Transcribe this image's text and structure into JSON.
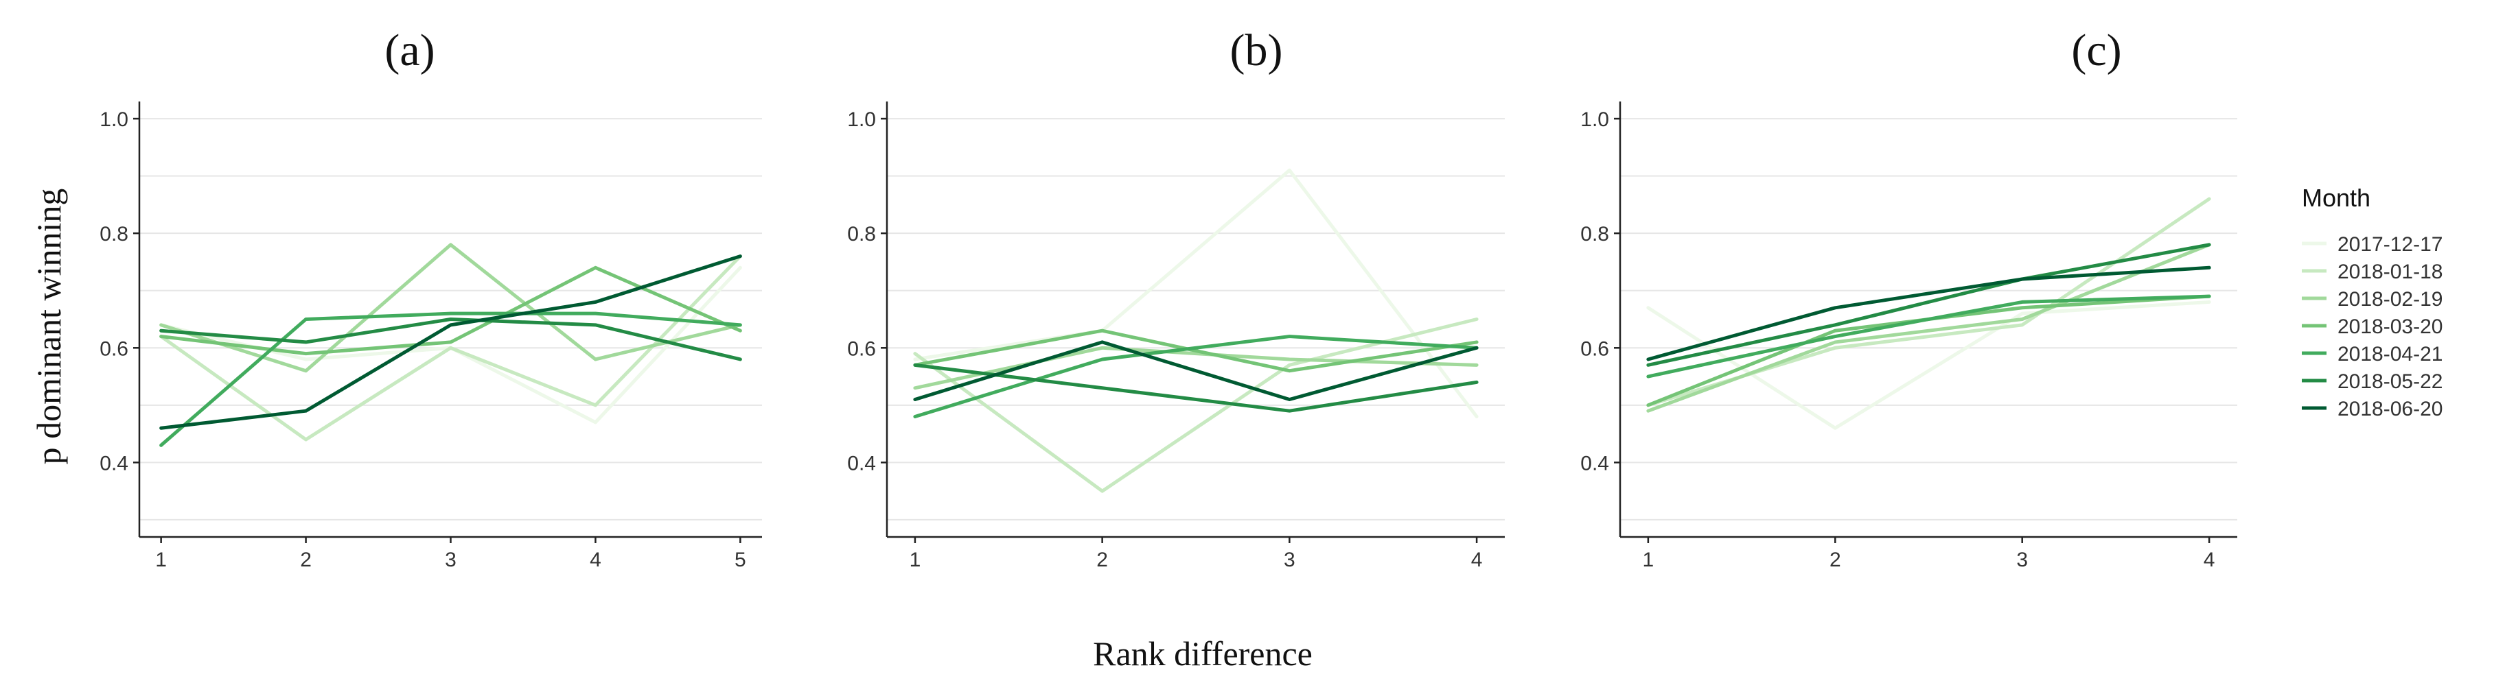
{
  "figure": {
    "ylabel": "p dominant winning",
    "xlabel": "Rank difference",
    "legend_title": "Month"
  },
  "series_colors": {
    "2017-12-17": "#edf8e9",
    "2018-01-18": "#c7e9c0",
    "2018-02-19": "#a1d99b",
    "2018-03-20": "#74c476",
    "2018-04-21": "#41ab5d",
    "2018-05-22": "#238b45",
    "2018-06-20": "#005a32"
  },
  "chart_data": [
    {
      "type": "line",
      "title": "(a)",
      "xlabel": "Rank difference",
      "ylabel": "p dominant winning",
      "x": [
        1,
        2,
        3,
        4,
        5
      ],
      "xticks": [
        "1",
        "2",
        "3",
        "4",
        "5"
      ],
      "yticks": [
        "0.4",
        "0.6",
        "0.8",
        "1.0"
      ],
      "xlim": [
        0.85,
        5.15
      ],
      "ylim": [
        0.27,
        1.03
      ],
      "series": [
        {
          "name": "2017-12-17",
          "values": [
            0.64,
            0.58,
            0.6,
            0.47,
            0.74
          ]
        },
        {
          "name": "2018-01-18",
          "values": [
            0.62,
            0.44,
            0.6,
            0.5,
            0.76
          ]
        },
        {
          "name": "2018-02-19",
          "values": [
            0.64,
            0.56,
            0.78,
            0.58,
            0.64
          ]
        },
        {
          "name": "2018-03-20",
          "values": [
            0.62,
            0.59,
            0.61,
            0.74,
            0.63
          ]
        },
        {
          "name": "2018-04-21",
          "values": [
            0.43,
            0.65,
            0.66,
            0.66,
            0.64
          ]
        },
        {
          "name": "2018-05-22",
          "values": [
            0.63,
            0.61,
            0.65,
            0.64,
            0.58
          ]
        },
        {
          "name": "2018-06-20",
          "values": [
            0.46,
            0.49,
            0.64,
            0.68,
            0.76
          ]
        }
      ]
    },
    {
      "type": "line",
      "title": "(b)",
      "xlabel": "Rank difference",
      "ylabel": "p dominant winning",
      "x": [
        1,
        2,
        3,
        4
      ],
      "xticks": [
        "1",
        "2",
        "3",
        "4"
      ],
      "yticks": [
        "0.4",
        "0.6",
        "0.8",
        "1.0"
      ],
      "xlim": [
        0.85,
        4.15
      ],
      "ylim": [
        0.27,
        1.03
      ],
      "series": [
        {
          "name": "2017-12-17",
          "values": [
            0.58,
            0.63,
            0.91,
            0.48
          ]
        },
        {
          "name": "2018-01-18",
          "values": [
            0.59,
            0.35,
            0.57,
            0.65
          ]
        },
        {
          "name": "2018-02-19",
          "values": [
            0.53,
            0.6,
            0.58,
            0.57
          ]
        },
        {
          "name": "2018-03-20",
          "values": [
            0.57,
            0.63,
            0.56,
            0.61
          ]
        },
        {
          "name": "2018-04-21",
          "values": [
            0.48,
            0.58,
            0.62,
            0.6
          ]
        },
        {
          "name": "2018-05-22",
          "values": [
            0.57,
            0.53,
            0.49,
            0.54
          ]
        },
        {
          "name": "2018-06-20",
          "values": [
            0.51,
            0.61,
            0.51,
            0.6
          ]
        }
      ]
    },
    {
      "type": "line",
      "title": "(c)",
      "xlabel": "Rank difference",
      "ylabel": "p dominant winning",
      "x": [
        1,
        2,
        3,
        4
      ],
      "xticks": [
        "1",
        "2",
        "3",
        "4"
      ],
      "yticks": [
        "0.4",
        "0.6",
        "0.8",
        "1.0"
      ],
      "xlim": [
        0.85,
        4.15
      ],
      "ylim": [
        0.27,
        1.03
      ],
      "series": [
        {
          "name": "2017-12-17",
          "values": [
            0.67,
            0.46,
            0.66,
            0.68
          ]
        },
        {
          "name": "2018-01-18",
          "values": [
            0.5,
            0.6,
            0.64,
            0.86
          ]
        },
        {
          "name": "2018-02-19",
          "values": [
            0.49,
            0.61,
            0.65,
            0.78
          ]
        },
        {
          "name": "2018-03-20",
          "values": [
            0.5,
            0.63,
            0.67,
            0.69
          ]
        },
        {
          "name": "2018-04-21",
          "values": [
            0.55,
            0.62,
            0.68,
            0.69
          ]
        },
        {
          "name": "2018-05-22",
          "values": [
            0.57,
            0.64,
            0.72,
            0.78
          ]
        },
        {
          "name": "2018-06-20",
          "values": [
            0.58,
            0.67,
            0.72,
            0.74
          ]
        }
      ]
    }
  ]
}
